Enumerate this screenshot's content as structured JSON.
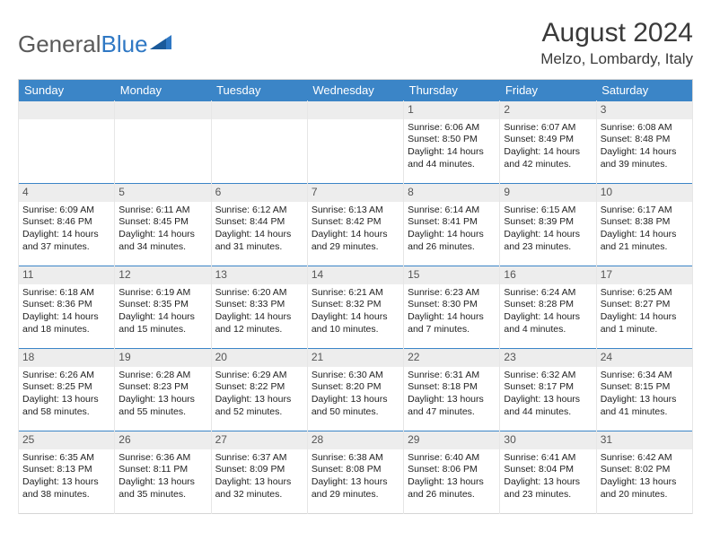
{
  "logo": {
    "text_gray": "General",
    "text_blue": "Blue"
  },
  "title": "August 2024",
  "location": "Melzo, Lombardy, Italy",
  "colors": {
    "header_bg": "#3b85c7",
    "header_text": "#ffffff",
    "daynum_bg": "#ededed",
    "border": "#d5d5d5",
    "row_divider": "#3b85c7"
  },
  "day_headers": [
    "Sunday",
    "Monday",
    "Tuesday",
    "Wednesday",
    "Thursday",
    "Friday",
    "Saturday"
  ],
  "weeks": [
    [
      {
        "n": "",
        "sr": "",
        "ss": "",
        "dl1": "",
        "dl2": ""
      },
      {
        "n": "",
        "sr": "",
        "ss": "",
        "dl1": "",
        "dl2": ""
      },
      {
        "n": "",
        "sr": "",
        "ss": "",
        "dl1": "",
        "dl2": ""
      },
      {
        "n": "",
        "sr": "",
        "ss": "",
        "dl1": "",
        "dl2": ""
      },
      {
        "n": "1",
        "sr": "Sunrise: 6:06 AM",
        "ss": "Sunset: 8:50 PM",
        "dl1": "Daylight: 14 hours",
        "dl2": "and 44 minutes."
      },
      {
        "n": "2",
        "sr": "Sunrise: 6:07 AM",
        "ss": "Sunset: 8:49 PM",
        "dl1": "Daylight: 14 hours",
        "dl2": "and 42 minutes."
      },
      {
        "n": "3",
        "sr": "Sunrise: 6:08 AM",
        "ss": "Sunset: 8:48 PM",
        "dl1": "Daylight: 14 hours",
        "dl2": "and 39 minutes."
      }
    ],
    [
      {
        "n": "4",
        "sr": "Sunrise: 6:09 AM",
        "ss": "Sunset: 8:46 PM",
        "dl1": "Daylight: 14 hours",
        "dl2": "and 37 minutes."
      },
      {
        "n": "5",
        "sr": "Sunrise: 6:11 AM",
        "ss": "Sunset: 8:45 PM",
        "dl1": "Daylight: 14 hours",
        "dl2": "and 34 minutes."
      },
      {
        "n": "6",
        "sr": "Sunrise: 6:12 AM",
        "ss": "Sunset: 8:44 PM",
        "dl1": "Daylight: 14 hours",
        "dl2": "and 31 minutes."
      },
      {
        "n": "7",
        "sr": "Sunrise: 6:13 AM",
        "ss": "Sunset: 8:42 PM",
        "dl1": "Daylight: 14 hours",
        "dl2": "and 29 minutes."
      },
      {
        "n": "8",
        "sr": "Sunrise: 6:14 AM",
        "ss": "Sunset: 8:41 PM",
        "dl1": "Daylight: 14 hours",
        "dl2": "and 26 minutes."
      },
      {
        "n": "9",
        "sr": "Sunrise: 6:15 AM",
        "ss": "Sunset: 8:39 PM",
        "dl1": "Daylight: 14 hours",
        "dl2": "and 23 minutes."
      },
      {
        "n": "10",
        "sr": "Sunrise: 6:17 AM",
        "ss": "Sunset: 8:38 PM",
        "dl1": "Daylight: 14 hours",
        "dl2": "and 21 minutes."
      }
    ],
    [
      {
        "n": "11",
        "sr": "Sunrise: 6:18 AM",
        "ss": "Sunset: 8:36 PM",
        "dl1": "Daylight: 14 hours",
        "dl2": "and 18 minutes."
      },
      {
        "n": "12",
        "sr": "Sunrise: 6:19 AM",
        "ss": "Sunset: 8:35 PM",
        "dl1": "Daylight: 14 hours",
        "dl2": "and 15 minutes."
      },
      {
        "n": "13",
        "sr": "Sunrise: 6:20 AM",
        "ss": "Sunset: 8:33 PM",
        "dl1": "Daylight: 14 hours",
        "dl2": "and 12 minutes."
      },
      {
        "n": "14",
        "sr": "Sunrise: 6:21 AM",
        "ss": "Sunset: 8:32 PM",
        "dl1": "Daylight: 14 hours",
        "dl2": "and 10 minutes."
      },
      {
        "n": "15",
        "sr": "Sunrise: 6:23 AM",
        "ss": "Sunset: 8:30 PM",
        "dl1": "Daylight: 14 hours",
        "dl2": "and 7 minutes."
      },
      {
        "n": "16",
        "sr": "Sunrise: 6:24 AM",
        "ss": "Sunset: 8:28 PM",
        "dl1": "Daylight: 14 hours",
        "dl2": "and 4 minutes."
      },
      {
        "n": "17",
        "sr": "Sunrise: 6:25 AM",
        "ss": "Sunset: 8:27 PM",
        "dl1": "Daylight: 14 hours",
        "dl2": "and 1 minute."
      }
    ],
    [
      {
        "n": "18",
        "sr": "Sunrise: 6:26 AM",
        "ss": "Sunset: 8:25 PM",
        "dl1": "Daylight: 13 hours",
        "dl2": "and 58 minutes."
      },
      {
        "n": "19",
        "sr": "Sunrise: 6:28 AM",
        "ss": "Sunset: 8:23 PM",
        "dl1": "Daylight: 13 hours",
        "dl2": "and 55 minutes."
      },
      {
        "n": "20",
        "sr": "Sunrise: 6:29 AM",
        "ss": "Sunset: 8:22 PM",
        "dl1": "Daylight: 13 hours",
        "dl2": "and 52 minutes."
      },
      {
        "n": "21",
        "sr": "Sunrise: 6:30 AM",
        "ss": "Sunset: 8:20 PM",
        "dl1": "Daylight: 13 hours",
        "dl2": "and 50 minutes."
      },
      {
        "n": "22",
        "sr": "Sunrise: 6:31 AM",
        "ss": "Sunset: 8:18 PM",
        "dl1": "Daylight: 13 hours",
        "dl2": "and 47 minutes."
      },
      {
        "n": "23",
        "sr": "Sunrise: 6:32 AM",
        "ss": "Sunset: 8:17 PM",
        "dl1": "Daylight: 13 hours",
        "dl2": "and 44 minutes."
      },
      {
        "n": "24",
        "sr": "Sunrise: 6:34 AM",
        "ss": "Sunset: 8:15 PM",
        "dl1": "Daylight: 13 hours",
        "dl2": "and 41 minutes."
      }
    ],
    [
      {
        "n": "25",
        "sr": "Sunrise: 6:35 AM",
        "ss": "Sunset: 8:13 PM",
        "dl1": "Daylight: 13 hours",
        "dl2": "and 38 minutes."
      },
      {
        "n": "26",
        "sr": "Sunrise: 6:36 AM",
        "ss": "Sunset: 8:11 PM",
        "dl1": "Daylight: 13 hours",
        "dl2": "and 35 minutes."
      },
      {
        "n": "27",
        "sr": "Sunrise: 6:37 AM",
        "ss": "Sunset: 8:09 PM",
        "dl1": "Daylight: 13 hours",
        "dl2": "and 32 minutes."
      },
      {
        "n": "28",
        "sr": "Sunrise: 6:38 AM",
        "ss": "Sunset: 8:08 PM",
        "dl1": "Daylight: 13 hours",
        "dl2": "and 29 minutes."
      },
      {
        "n": "29",
        "sr": "Sunrise: 6:40 AM",
        "ss": "Sunset: 8:06 PM",
        "dl1": "Daylight: 13 hours",
        "dl2": "and 26 minutes."
      },
      {
        "n": "30",
        "sr": "Sunrise: 6:41 AM",
        "ss": "Sunset: 8:04 PM",
        "dl1": "Daylight: 13 hours",
        "dl2": "and 23 minutes."
      },
      {
        "n": "31",
        "sr": "Sunrise: 6:42 AM",
        "ss": "Sunset: 8:02 PM",
        "dl1": "Daylight: 13 hours",
        "dl2": "and 20 minutes."
      }
    ]
  ]
}
